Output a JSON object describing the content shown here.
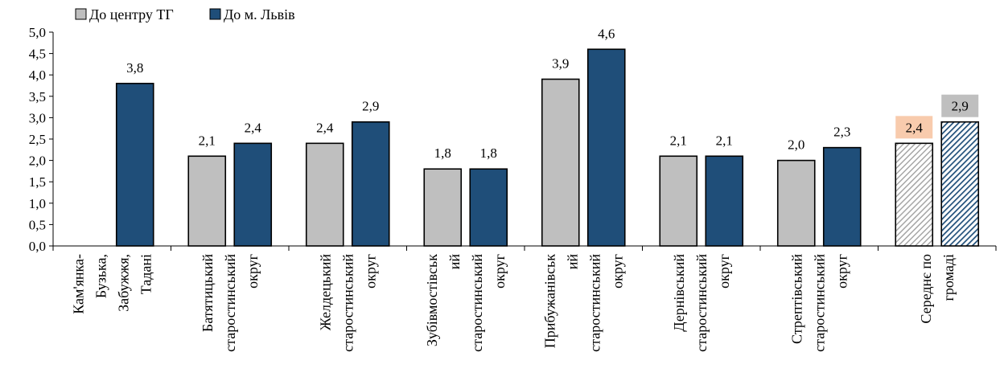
{
  "chart_data": {
    "type": "bar",
    "categories": [
      [
        "Кам'янка-",
        "Бузька,",
        "Забужжя,",
        "Тадані"
      ],
      [
        "Батятицький",
        "старостинський",
        "округ"
      ],
      [
        "Желдецький",
        "старостинський",
        "округ"
      ],
      [
        "Зубівмостівськ",
        "ий",
        "старостинський",
        "округ"
      ],
      [
        "Прибужанівськ",
        "ий",
        "старостинський",
        "округ"
      ],
      [
        "Дернівський",
        "старостинський",
        "округ"
      ],
      [
        "Стрептівський",
        "старостинський",
        "округ"
      ],
      [
        "Середнє по",
        "громаді"
      ]
    ],
    "series": [
      {
        "name": "До центру ТГ",
        "color": "#bfbfbf",
        "values": [
          null,
          2.1,
          2.4,
          1.8,
          3.9,
          2.1,
          2.0,
          2.4
        ],
        "labels": [
          "",
          "2,1",
          "2,4",
          "1,8",
          "3,9",
          "2,1",
          "2,0",
          "2,4"
        ]
      },
      {
        "name": "До м. Львів",
        "color": "#1f4e79",
        "values": [
          3.8,
          2.4,
          2.9,
          1.8,
          4.6,
          2.1,
          2.3,
          2.9
        ],
        "labels": [
          "3,8",
          "2,4",
          "2,9",
          "1,8",
          "4,6",
          "2,1",
          "2,3",
          "2,9"
        ]
      }
    ],
    "average_label_colors": [
      "#f8cbad",
      "#bfbfbf"
    ],
    "ylim": [
      0,
      5
    ],
    "yticks": [
      "0,0",
      "0,5",
      "1,0",
      "1,5",
      "2,0",
      "2,5",
      "3,0",
      "3,5",
      "4,0",
      "4,5",
      "5,0"
    ],
    "legend_position": "top-left",
    "grid": false
  }
}
